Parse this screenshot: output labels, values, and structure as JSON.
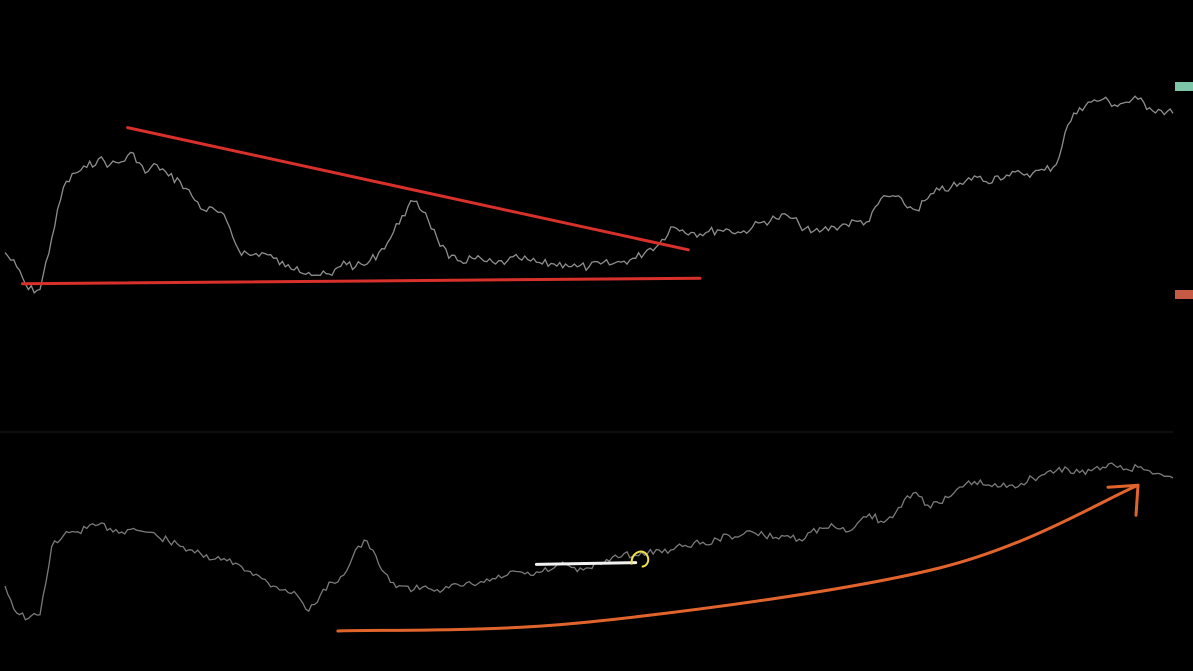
{
  "colors": {
    "background": "#000000",
    "price_line": "#8e8e8e",
    "indicator_line": "#7a7a7a",
    "trendline_red": "#d8302b",
    "trendline_orange": "#e2642d",
    "annotation_white": "#f2f2f2",
    "annotation_yellow": "#f2e24a",
    "axis_tag_green": "#7ec6a8",
    "axis_tag_red": "#c65a44",
    "separator": "#1c1c1c"
  },
  "chart_data": [
    {
      "type": "line",
      "pane": "price",
      "title": "",
      "xlabel": "",
      "ylabel": "",
      "grid": false,
      "x_range": [
        0,
        100
      ],
      "y_range": [
        0,
        100
      ],
      "series": [
        {
          "x": [
            0,
            1,
            2,
            3,
            4,
            5,
            6,
            7,
            8,
            9,
            10,
            11,
            12,
            13,
            14,
            15,
            16,
            17,
            18,
            19,
            20,
            21,
            22,
            23,
            24,
            25,
            26,
            27,
            28,
            29,
            30,
            31,
            32,
            33,
            34,
            35,
            36,
            37,
            38,
            39,
            40,
            41,
            42,
            43,
            44,
            45,
            46,
            47,
            48,
            49,
            50,
            51,
            52,
            53,
            54,
            55,
            56,
            57,
            58,
            59,
            60,
            61,
            62,
            63,
            64,
            65,
            66,
            67,
            68,
            69,
            70,
            71,
            72,
            73,
            74,
            75,
            76,
            77,
            78,
            79,
            80,
            81,
            82,
            83,
            84,
            85,
            86,
            87,
            88,
            89,
            90,
            91,
            92,
            93,
            94,
            95,
            96,
            97,
            98,
            99,
            100
          ],
          "values": [
            35,
            30,
            22,
            22,
            40,
            58,
            63,
            65,
            68,
            66,
            67,
            70,
            63,
            66,
            62,
            60,
            55,
            50,
            50,
            46,
            36,
            34,
            35,
            33,
            30,
            30,
            28,
            27,
            27,
            32,
            30,
            31,
            35,
            40,
            48,
            53,
            49,
            40,
            33,
            32,
            33,
            32,
            31,
            32,
            33,
            32,
            31,
            31,
            31,
            30,
            30,
            31,
            31,
            32,
            33,
            36,
            38,
            44,
            43,
            42,
            42,
            43,
            43,
            42,
            44,
            46,
            47,
            48,
            45,
            42,
            43,
            44,
            45,
            46,
            46,
            54,
            55,
            52,
            50,
            54,
            57,
            58,
            59,
            62,
            60,
            62,
            62,
            63,
            63,
            64,
            66,
            80,
            86,
            88,
            89,
            87,
            88,
            89,
            86,
            85,
            84
          ]
        }
      ],
      "trendlines": [
        {
          "name": "upper",
          "points": [
            [
              10.5,
              79
            ],
            [
              58.5,
              36
            ]
          ]
        },
        {
          "name": "lower",
          "points": [
            [
              1.5,
              24
            ],
            [
              59.5,
              26
            ]
          ]
        }
      ]
    },
    {
      "type": "line",
      "pane": "indicator",
      "title": "",
      "xlabel": "",
      "ylabel": "",
      "grid": false,
      "x_range": [
        0,
        100
      ],
      "y_range": [
        0,
        100
      ],
      "series": [
        {
          "x": [
            0,
            1,
            2,
            3,
            4,
            5,
            6,
            7,
            8,
            9,
            10,
            11,
            12,
            13,
            14,
            15,
            16,
            17,
            18,
            19,
            20,
            21,
            22,
            23,
            24,
            25,
            26,
            27,
            28,
            29,
            30,
            31,
            32,
            33,
            34,
            35,
            36,
            37,
            38,
            39,
            40,
            41,
            42,
            43,
            44,
            45,
            46,
            47,
            48,
            49,
            50,
            51,
            52,
            53,
            54,
            55,
            56,
            57,
            58,
            59,
            60,
            61,
            62,
            63,
            64,
            65,
            66,
            67,
            68,
            69,
            70,
            71,
            72,
            73,
            74,
            75,
            76,
            77,
            78,
            79,
            80,
            81,
            82,
            83,
            84,
            85,
            86,
            87,
            88,
            89,
            90,
            91,
            92,
            93,
            94,
            95,
            96,
            97,
            98,
            99,
            100
          ],
          "values": [
            30,
            15,
            12,
            14,
            52,
            58,
            60,
            62,
            64,
            62,
            60,
            62,
            60,
            58,
            55,
            52,
            50,
            46,
            45,
            44,
            42,
            38,
            34,
            30,
            28,
            25,
            16,
            25,
            32,
            36,
            50,
            55,
            42,
            32,
            30,
            28,
            30,
            28,
            29,
            30,
            31,
            32,
            34,
            36,
            38,
            36,
            38,
            40,
            42,
            38,
            40,
            42,
            46,
            48,
            47,
            48,
            50,
            50,
            52,
            54,
            53,
            56,
            58,
            58,
            60,
            58,
            57,
            58,
            56,
            60,
            62,
            63,
            60,
            65,
            70,
            66,
            68,
            78,
            82,
            75,
            76,
            80,
            85,
            88,
            86,
            85,
            86,
            87,
            90,
            92,
            94,
            95,
            93,
            94,
            96,
            97,
            95,
            96,
            94,
            92,
            90
          ]
        }
      ],
      "trendlines": [
        {
          "name": "rising-curve",
          "points": [
            [
              28.5,
              5
            ],
            [
              50,
              10
            ],
            [
              80,
              40
            ],
            [
              97,
              86
            ]
          ]
        },
        {
          "name": "horizontal-level",
          "points": [
            [
              45.5,
              42
            ],
            [
              54,
              43
            ]
          ]
        }
      ]
    }
  ]
}
